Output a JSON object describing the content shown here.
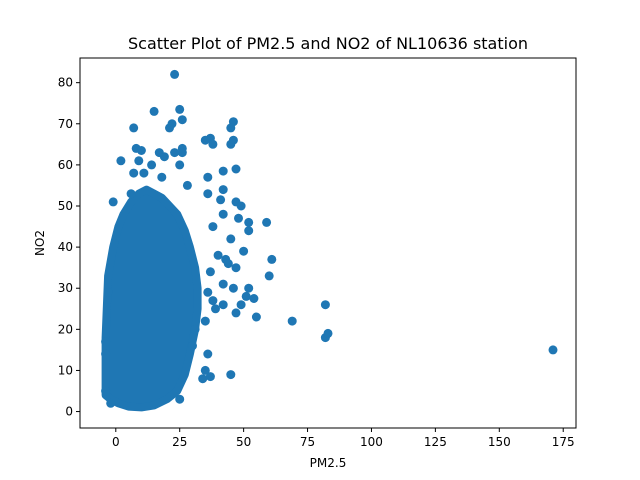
{
  "chart_data": {
    "type": "scatter",
    "title": "Scatter Plot of PM2.5 and NO2 of NL10636 station",
    "xlabel": "PM2.5",
    "ylabel": "NO2",
    "xlim": [
      -14,
      180
    ],
    "ylim": [
      -4,
      86
    ],
    "xticks": [
      0,
      25,
      50,
      75,
      100,
      125,
      150,
      175
    ],
    "yticks": [
      0,
      10,
      20,
      30,
      40,
      50,
      60,
      70,
      80
    ],
    "grid": false,
    "legend": "none",
    "marker_color": "#1f77b4",
    "points": [
      {
        "x": 23,
        "y": 82
      },
      {
        "x": 15,
        "y": 73
      },
      {
        "x": 25,
        "y": 73.5
      },
      {
        "x": 26,
        "y": 71
      },
      {
        "x": 46,
        "y": 70.5
      },
      {
        "x": 7,
        "y": 69
      },
      {
        "x": 21,
        "y": 69
      },
      {
        "x": 22,
        "y": 70
      },
      {
        "x": 45,
        "y": 69
      },
      {
        "x": 46,
        "y": 66
      },
      {
        "x": 37,
        "y": 66.5
      },
      {
        "x": 35,
        "y": 66
      },
      {
        "x": 45,
        "y": 65
      },
      {
        "x": 38,
        "y": 65
      },
      {
        "x": 26,
        "y": 64
      },
      {
        "x": 26,
        "y": 63
      },
      {
        "x": 8,
        "y": 64
      },
      {
        "x": 10,
        "y": 63.5
      },
      {
        "x": 17,
        "y": 63
      },
      {
        "x": 19,
        "y": 62
      },
      {
        "x": 23,
        "y": 63
      },
      {
        "x": 2,
        "y": 61
      },
      {
        "x": 9,
        "y": 61
      },
      {
        "x": 14,
        "y": 60
      },
      {
        "x": 25,
        "y": 60
      },
      {
        "x": 47,
        "y": 59
      },
      {
        "x": 42,
        "y": 58.5
      },
      {
        "x": 7,
        "y": 58
      },
      {
        "x": 11,
        "y": 58
      },
      {
        "x": 18,
        "y": 57
      },
      {
        "x": 36,
        "y": 57
      },
      {
        "x": 28,
        "y": 55
      },
      {
        "x": 42,
        "y": 54
      },
      {
        "x": 36,
        "y": 53
      },
      {
        "x": 6,
        "y": 53
      },
      {
        "x": 41,
        "y": 51.5
      },
      {
        "x": 47,
        "y": 51
      },
      {
        "x": 49,
        "y": 50
      },
      {
        "x": 42,
        "y": 48
      },
      {
        "x": 48,
        "y": 47
      },
      {
        "x": 52,
        "y": 46
      },
      {
        "x": 59,
        "y": 46
      },
      {
        "x": 52,
        "y": 44
      },
      {
        "x": 38,
        "y": 45
      },
      {
        "x": 45,
        "y": 42
      },
      {
        "x": 50,
        "y": 39
      },
      {
        "x": 43,
        "y": 37
      },
      {
        "x": 40,
        "y": 38
      },
      {
        "x": 61,
        "y": 37
      },
      {
        "x": 44,
        "y": 36
      },
      {
        "x": 47,
        "y": 35
      },
      {
        "x": 37,
        "y": 34
      },
      {
        "x": 60,
        "y": 33
      },
      {
        "x": 42,
        "y": 31
      },
      {
        "x": 46,
        "y": 30
      },
      {
        "x": 52,
        "y": 30
      },
      {
        "x": 36,
        "y": 29
      },
      {
        "x": 51,
        "y": 28
      },
      {
        "x": 54,
        "y": 27.5
      },
      {
        "x": 38,
        "y": 27
      },
      {
        "x": 42,
        "y": 26
      },
      {
        "x": 49,
        "y": 26
      },
      {
        "x": 47,
        "y": 24
      },
      {
        "x": 55,
        "y": 23
      },
      {
        "x": 39,
        "y": 25
      },
      {
        "x": 35,
        "y": 22
      },
      {
        "x": 31,
        "y": 20
      },
      {
        "x": 30,
        "y": 16
      },
      {
        "x": 36,
        "y": 14
      },
      {
        "x": 35,
        "y": 10
      },
      {
        "x": 37,
        "y": 8.5
      },
      {
        "x": 45,
        "y": 9
      },
      {
        "x": 34,
        "y": 8
      },
      {
        "x": 25,
        "y": 3
      },
      {
        "x": 69,
        "y": 22
      },
      {
        "x": 82,
        "y": 26
      },
      {
        "x": 82,
        "y": 18
      },
      {
        "x": 83,
        "y": 19
      },
      {
        "x": 171,
        "y": 15
      },
      {
        "x": -1,
        "y": 51
      },
      {
        "x": -3,
        "y": 29
      },
      {
        "x": -4,
        "y": 17
      },
      {
        "x": -4,
        "y": 14
      },
      {
        "x": -4,
        "y": 5
      },
      {
        "x": -2,
        "y": 2
      }
    ]
  }
}
